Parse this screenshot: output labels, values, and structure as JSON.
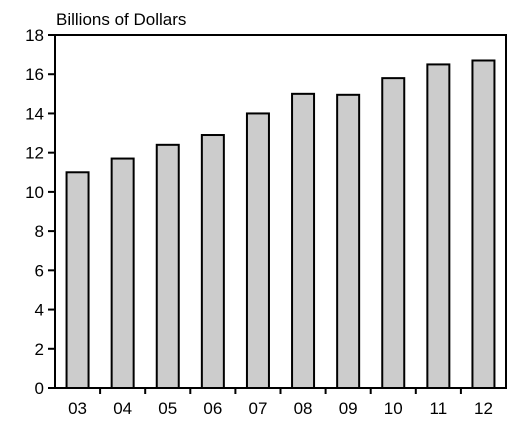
{
  "chart_data": {
    "type": "bar",
    "title": "",
    "ylabel": "Billions of Dollars",
    "xlabel": "",
    "categories": [
      "03",
      "04",
      "05",
      "06",
      "07",
      "08",
      "09",
      "10",
      "11",
      "12"
    ],
    "values": [
      11.0,
      11.7,
      12.4,
      12.9,
      14.0,
      15.0,
      14.95,
      15.8,
      16.5,
      16.7
    ],
    "ylim": [
      0,
      18
    ],
    "yticks": [
      0,
      2,
      4,
      6,
      8,
      10,
      12,
      14,
      16,
      18
    ],
    "grid": false,
    "legend": "none",
    "colors": {
      "bar_fill": "#cccccc",
      "bar_stroke": "#000000",
      "axis": "#000000",
      "background": "#ffffff"
    }
  }
}
